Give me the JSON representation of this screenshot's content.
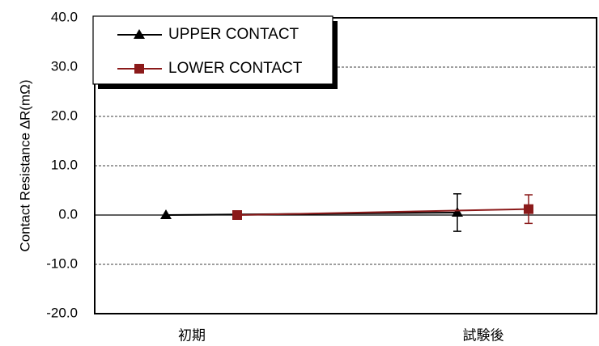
{
  "chart_data": {
    "type": "line",
    "title": "",
    "xlabel": "",
    "ylabel": "Contact Resistance  ∆R(mΩ)",
    "categories": [
      "初期",
      "試験後"
    ],
    "ylim": [
      -20,
      40
    ],
    "yticks": [
      "40.0",
      "30.0",
      "20.0",
      "10.0",
      "0.0",
      "-10.0",
      "-20.0"
    ],
    "grid": "horizontal dashed",
    "legend_position": "top-left",
    "series": [
      {
        "name": "UPPER CONTACT",
        "color": "#000000",
        "marker": "triangle",
        "values": [
          0.0,
          0.5
        ],
        "error": [
          0.0,
          3.8
        ]
      },
      {
        "name": "LOWER CONTACT",
        "color": "#8b1a1a",
        "marker": "square",
        "values": [
          0.0,
          1.2
        ],
        "error": [
          0.0,
          2.9
        ]
      }
    ]
  }
}
